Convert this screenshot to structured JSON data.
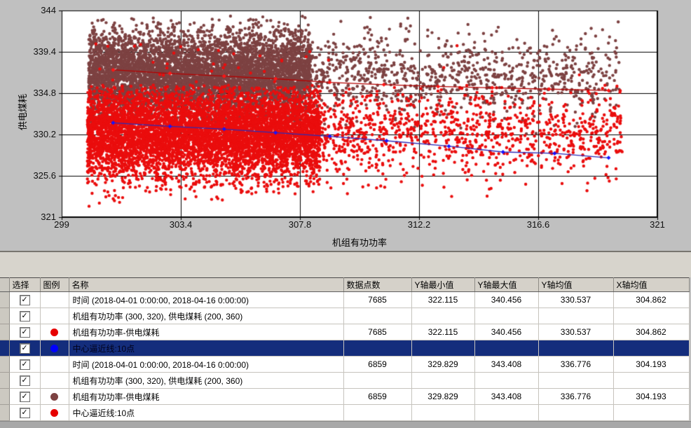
{
  "chart": {
    "y_axis_title": "供电煤耗",
    "x_axis_title": "机组有功功率"
  },
  "chart_data": {
    "type": "scatter",
    "title": "",
    "xlabel": "机组有功功率",
    "ylabel": "供电煤耗",
    "xlim": [
      299,
      321
    ],
    "ylim": [
      321,
      344
    ],
    "x_ticks": [
      299,
      303.4,
      307.8,
      312.2,
      316.6,
      321
    ],
    "y_ticks": [
      321,
      325.6,
      330.2,
      334.8,
      339.4,
      344
    ],
    "grid": true,
    "legend_position": "none",
    "series": [
      {
        "name": "机组有功功率-供电煤耗",
        "type": "scatter",
        "color": "#7d4242",
        "n_points": 6859,
        "stats": {
          "y_min": 329.829,
          "y_max": 343.408,
          "y_mean": 336.776,
          "x_mean": 304.193
        },
        "cloud": {
          "seed": 7,
          "x_start": 300.0,
          "x_core_width": 8.2,
          "x_tail_width": 19.6,
          "core_fraction": 0.7,
          "y_mean": 336.9,
          "y_sd": 2.35,
          "y_clip": [
            329.85,
            343.4
          ],
          "outlier_fraction": 0,
          "outlier_y": [
            0,
            0
          ],
          "dot_radius": 2.2
        }
      },
      {
        "name": "机组有功功率-供电煤耗",
        "type": "scatter",
        "color": "#ea0d0d",
        "n_points": 7685,
        "stats": {
          "y_min": 322.115,
          "y_max": 340.456,
          "y_mean": 330.537,
          "x_mean": 304.862
        },
        "cloud": {
          "seed": 13,
          "x_start": 299.95,
          "x_core_width": 8.6,
          "x_tail_width": 19.8,
          "core_fraction": 0.7,
          "y_mean": 330.4,
          "y_sd": 2.55,
          "y_clip": [
            322.12,
            335.7
          ],
          "outlier_fraction": 0.004,
          "outlier_y": [
            335.7,
            340.45
          ],
          "dot_radius": 2.2
        }
      },
      {
        "name": "中心逼近线:10点",
        "type": "line",
        "color": "#b40000",
        "marker_color": "#ff1414",
        "points": [
          [
            300.9,
            337.4
          ],
          [
            303.0,
            337.0
          ],
          [
            305.0,
            336.7
          ],
          [
            306.9,
            336.4
          ],
          [
            308.9,
            336.0
          ],
          [
            310.9,
            335.75
          ],
          [
            312.9,
            335.55
          ],
          [
            314.9,
            335.4
          ],
          [
            317.0,
            335.25
          ],
          [
            319.2,
            335.1
          ]
        ]
      },
      {
        "name": "中心逼近线:10点",
        "type": "line",
        "color": "#2b2bb8",
        "marker_color": "#1414ff",
        "points": [
          [
            300.9,
            331.5
          ],
          [
            303.0,
            331.1
          ],
          [
            305.0,
            330.8
          ],
          [
            306.9,
            330.4
          ],
          [
            308.9,
            330.0
          ],
          [
            311.0,
            329.5
          ],
          [
            313.3,
            328.9
          ],
          [
            315.3,
            328.25
          ],
          [
            317.2,
            328.1
          ],
          [
            319.2,
            327.6
          ]
        ]
      }
    ]
  },
  "table": {
    "headers": [
      "选择",
      "图例",
      "名称",
      "数据点数",
      "Y轴最小值",
      "Y轴最大值",
      "Y轴均值",
      "X轴均值"
    ],
    "rows": [
      {
        "checked": true,
        "legend_color": "",
        "name": "时间 (2018-04-01 0:00:00, 2018-04-16 0:00:00)",
        "points": "7685",
        "y_min": "322.115",
        "y_max": "340.456",
        "y_mean": "330.537",
        "x_mean": "304.862",
        "selected": false
      },
      {
        "checked": true,
        "legend_color": "",
        "name": "机组有功功率 (300, 320), 供电煤耗 (200, 360)",
        "points": "",
        "y_min": "",
        "y_max": "",
        "y_mean": "",
        "x_mean": "",
        "selected": false
      },
      {
        "checked": true,
        "legend_color": "#e60000",
        "name": "机组有功功率-供电煤耗",
        "points": "7685",
        "y_min": "322.115",
        "y_max": "340.456",
        "y_mean": "330.537",
        "x_mean": "304.862",
        "selected": false
      },
      {
        "checked": true,
        "legend_color": "#0000ff",
        "name": "中心逼近线:10点",
        "points": "",
        "y_min": "",
        "y_max": "",
        "y_mean": "",
        "x_mean": "",
        "selected": true
      },
      {
        "checked": true,
        "legend_color": "",
        "name": "时间 (2018-04-01 0:00:00, 2018-04-16 0:00:00)",
        "points": "6859",
        "y_min": "329.829",
        "y_max": "343.408",
        "y_mean": "336.776",
        "x_mean": "304.193",
        "selected": false
      },
      {
        "checked": true,
        "legend_color": "",
        "name": "机组有功功率 (300, 320), 供电煤耗 (200, 360)",
        "points": "",
        "y_min": "",
        "y_max": "",
        "y_mean": "",
        "x_mean": "",
        "selected": false
      },
      {
        "checked": true,
        "legend_color": "#7d4242",
        "name": "机组有功功率-供电煤耗",
        "points": "6859",
        "y_min": "329.829",
        "y_max": "343.408",
        "y_mean": "336.776",
        "x_mean": "304.193",
        "selected": false
      },
      {
        "checked": true,
        "legend_color": "#e60000",
        "name": "中心逼近线:10点",
        "points": "",
        "y_min": "",
        "y_max": "",
        "y_mean": "",
        "x_mean": "",
        "selected": false
      }
    ],
    "checkmark": "✓"
  },
  "colors": {
    "page_bg": "#c0c0c0",
    "plot_bg": "#ffffff",
    "grid_line": "#000000",
    "header_bg": "#d5d1c9",
    "gutter_bg": "#ccc9c1",
    "selected_row_bg": "#142d7c"
  }
}
